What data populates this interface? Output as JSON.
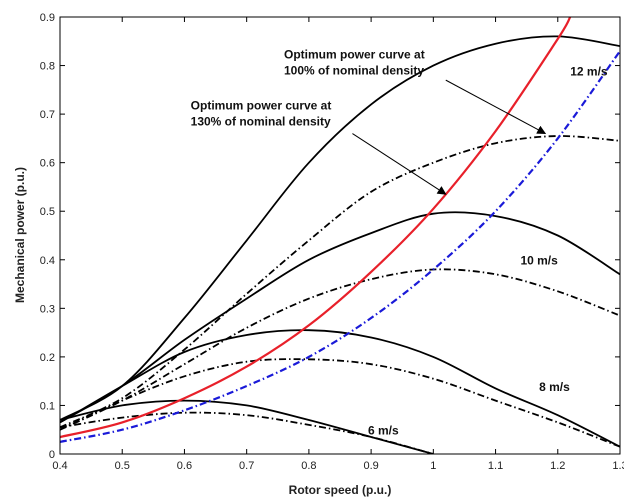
{
  "chart_data": {
    "type": "line",
    "title": "",
    "xlabel": "Rotor speed (p.u.)",
    "ylabel": "Mechanical power (p.u.)",
    "xlim": [
      0.4,
      1.3
    ],
    "ylim": [
      0,
      0.9
    ],
    "x_ticks": [
      "0.4",
      "0.5",
      "0.6",
      "0.7",
      "0.8",
      "0.9",
      "1",
      "1.1",
      "1.2",
      "1.3"
    ],
    "y_ticks": [
      "0",
      "0.1",
      "0.2",
      "0.3",
      "0.4",
      "0.5",
      "0.6",
      "0.7",
      "0.8",
      "0.9"
    ],
    "grid": false,
    "series": [
      {
        "name": "",
        "color": "#000000",
        "dash": "solid",
        "x": [
          0.4,
          0.5,
          0.6,
          0.7,
          0.8,
          0.9,
          1.0
        ],
        "y": [
          0.07,
          0.1,
          0.11,
          0.1,
          0.07,
          0.035,
          0.0
        ]
      },
      {
        "name": "",
        "color": "#000000",
        "dash": "dashdot",
        "x": [
          0.4,
          0.5,
          0.6,
          0.7,
          0.8,
          0.9,
          1.0
        ],
        "y": [
          0.055,
          0.075,
          0.085,
          0.08,
          0.06,
          0.035,
          0.0
        ]
      },
      {
        "name": "",
        "color": "#000000",
        "dash": "solid",
        "x": [
          0.4,
          0.5,
          0.6,
          0.7,
          0.8,
          0.9,
          1.0,
          1.1,
          1.2,
          1.3
        ],
        "y": [
          0.065,
          0.14,
          0.21,
          0.245,
          0.255,
          0.24,
          0.2,
          0.135,
          0.08,
          0.015
        ]
      },
      {
        "name": "",
        "color": "#000000",
        "dash": "dashdot",
        "x": [
          0.4,
          0.5,
          0.6,
          0.7,
          0.8,
          0.9,
          1.0,
          1.1,
          1.2,
          1.3
        ],
        "y": [
          0.05,
          0.11,
          0.16,
          0.19,
          0.195,
          0.185,
          0.155,
          0.11,
          0.065,
          0.015
        ]
      },
      {
        "name": "",
        "color": "#000000",
        "dash": "solid",
        "x": [
          0.4,
          0.5,
          0.6,
          0.7,
          0.8,
          0.9,
          1.0,
          1.1,
          1.2,
          1.3
        ],
        "y": [
          0.065,
          0.14,
          0.235,
          0.32,
          0.4,
          0.455,
          0.495,
          0.49,
          0.45,
          0.37
        ]
      },
      {
        "name": "",
        "color": "#000000",
        "dash": "dashdot",
        "x": [
          0.4,
          0.5,
          0.6,
          0.7,
          0.8,
          0.9,
          1.0,
          1.1,
          1.2,
          1.3
        ],
        "y": [
          0.05,
          0.11,
          0.185,
          0.26,
          0.32,
          0.36,
          0.38,
          0.37,
          0.335,
          0.285
        ]
      },
      {
        "name": "",
        "color": "#000000",
        "dash": "solid",
        "x": [
          0.4,
          0.5,
          0.6,
          0.7,
          0.8,
          0.9,
          1.0,
          1.1,
          1.2,
          1.3
        ],
        "y": [
          0.07,
          0.14,
          0.28,
          0.44,
          0.6,
          0.72,
          0.8,
          0.845,
          0.86,
          0.84
        ]
      },
      {
        "name": "",
        "color": "#000000",
        "dash": "dashdot",
        "x": [
          0.4,
          0.5,
          0.6,
          0.7,
          0.8,
          0.9,
          1.0,
          1.1,
          1.2,
          1.3
        ],
        "y": [
          0.055,
          0.115,
          0.215,
          0.33,
          0.44,
          0.54,
          0.6,
          0.64,
          0.655,
          0.645
        ]
      },
      {
        "name": "",
        "color": "#e8202a",
        "dash": "solid",
        "x": [
          0.4,
          0.5,
          0.6,
          0.7,
          0.8,
          0.9,
          1.0,
          1.1,
          1.2,
          1.22
        ],
        "y": [
          0.035,
          0.065,
          0.115,
          0.18,
          0.265,
          0.375,
          0.505,
          0.665,
          0.855,
          0.9
        ]
      },
      {
        "name": "",
        "color": "#1a1ad8",
        "dash": "dashdot",
        "x": [
          0.4,
          0.5,
          0.6,
          0.7,
          0.8,
          0.9,
          1.0,
          1.1,
          1.2,
          1.3
        ],
        "y": [
          0.025,
          0.05,
          0.09,
          0.14,
          0.2,
          0.28,
          0.38,
          0.5,
          0.65,
          0.83
        ]
      }
    ],
    "annotations": [
      {
        "text": "12 m/s",
        "x": 1.22,
        "y": 0.78
      },
      {
        "text": "10 m/s",
        "x": 1.14,
        "y": 0.39
      },
      {
        "text": "8 m/s",
        "x": 1.17,
        "y": 0.13
      },
      {
        "text": "6 m/s",
        "x": 0.895,
        "y": 0.04
      }
    ],
    "callouts": [
      {
        "lines": [
          "Optimum power curve at",
          "100% of nominal density"
        ],
        "x": 0.76,
        "y": 0.815,
        "arrow_from": [
          1.02,
          0.77
        ],
        "arrow_to": [
          1.18,
          0.66
        ]
      },
      {
        "lines": [
          "Optimum power curve at",
          "130% of nominal density"
        ],
        "x": 0.61,
        "y": 0.71,
        "arrow_from": [
          0.87,
          0.66
        ],
        "arrow_to": [
          1.02,
          0.535
        ]
      }
    ]
  }
}
